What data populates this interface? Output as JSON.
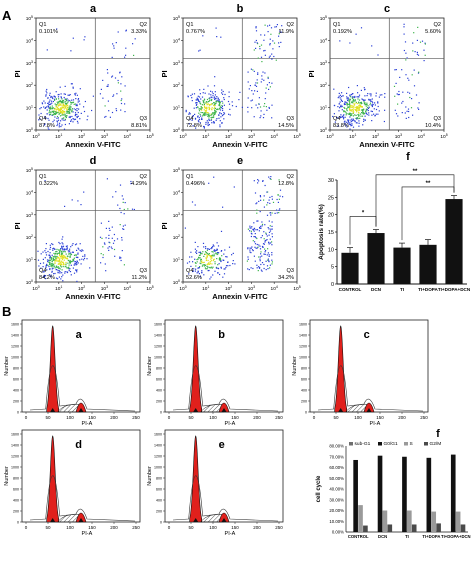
{
  "section_a_label": "A",
  "section_b_label": "B",
  "fc_xlabel": "Annexin V-FITC",
  "fc_ylabel": "PI",
  "cc_xlabel": "PI-A",
  "cc_ylabel": "Number",
  "scatter_panels": [
    {
      "label": "a",
      "q1": "Q1",
      "q1v": "0.101%",
      "q2": "Q2",
      "q2v": "3.33%",
      "q3": "Q3",
      "q3v": "8.81%",
      "q4": "Q4",
      "q4v": "87.8%"
    },
    {
      "label": "b",
      "q1": "Q1",
      "q1v": "0.767%",
      "q2": "Q2",
      "q2v": "11.9%",
      "q3": "Q3",
      "q3v": "14.5%",
      "q4": "Q4",
      "q4v": "72.8%"
    },
    {
      "label": "c",
      "q1": "Q1",
      "q1v": "0.192%",
      "q2": "Q2",
      "q2v": "5.60%",
      "q3": "Q3",
      "q3v": "10.4%",
      "q4": "Q4",
      "q4v": "83.8%"
    },
    {
      "label": "d",
      "q1": "Q1",
      "q1v": "0.322%",
      "q2": "Q2",
      "q2v": "4.29%",
      "q3": "Q3",
      "q3v": "11.2%",
      "q4": "Q4",
      "q4v": "84.2%"
    },
    {
      "label": "e",
      "q1": "Q1",
      "q1v": "0.496%",
      "q2": "Q2",
      "q2v": "12.8%",
      "q3": "Q3",
      "q3v": "34.2%",
      "q4": "Q4",
      "q4v": "52.6%"
    }
  ],
  "cycle_panels": [
    {
      "label": "a"
    },
    {
      "label": "b"
    },
    {
      "label": "c"
    },
    {
      "label": "d"
    },
    {
      "label": "e"
    }
  ],
  "chart_data": [
    {
      "type": "bar",
      "panel_label": "f",
      "title": "",
      "xlabel": "",
      "ylabel": "Apoptosis rate(%)",
      "categories": [
        "CONTROL",
        "DCN",
        "TI",
        "TI+DOPA",
        "TI+DOPA+DCN"
      ],
      "values": [
        9.0,
        14.7,
        10.5,
        11.3,
        24.5
      ],
      "errors": [
        1.5,
        1.0,
        1.3,
        1.5,
        1.0
      ],
      "ylim": [
        0,
        30
      ],
      "yticks": [
        "0",
        "5",
        "10",
        "15",
        "20",
        "25",
        "30"
      ],
      "significance": [
        "*",
        "**",
        "**"
      ],
      "bar_color": "#111111"
    },
    {
      "type": "bar",
      "panel_label": "f",
      "title": "",
      "xlabel": "",
      "ylabel": "cell cycle",
      "categories": [
        "CONTROL",
        "DCN",
        "TI",
        "TI+DOPA",
        "TI+DOPA+DCN"
      ],
      "series": [
        {
          "name": "sub-G1",
          "values": [
            0,
            0,
            0,
            0,
            0
          ],
          "color": "#6e6e6e"
        },
        {
          "name": "G0/G1",
          "values": [
            67,
            71,
            70,
            69,
            72
          ],
          "color": "#111111"
        },
        {
          "name": "S",
          "values": [
            25,
            20,
            20,
            19,
            19
          ],
          "color": "#9a9a9a"
        },
        {
          "name": "G2/M",
          "values": [
            6,
            7,
            7,
            8,
            7
          ],
          "color": "#4a4a4a"
        }
      ],
      "ylim": [
        0,
        80
      ],
      "yticks": [
        "0.00%",
        "10.00%",
        "20.00%",
        "30.00%",
        "40.00%",
        "50.00%",
        "60.00%",
        "70.00%",
        "80.00%"
      ],
      "legend": "top"
    }
  ]
}
